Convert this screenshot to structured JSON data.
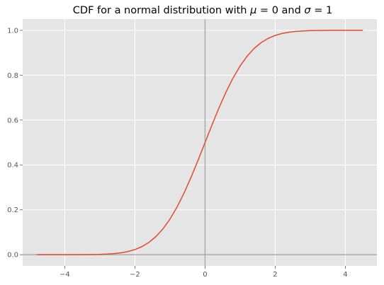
{
  "chart_data": {
    "type": "line",
    "title": "CDF for a normal distribution with μ = 0 and σ = 1",
    "title_parts": {
      "prefix": "CDF for a normal distribution with ",
      "mu_symbol": "μ",
      "eq1": " = 0",
      "and_text": " and ",
      "sigma_symbol": "σ",
      "eq2": " = 1"
    },
    "xlabel": "",
    "ylabel": "",
    "xlim": [
      -5.2,
      4.9
    ],
    "ylim": [
      -0.05,
      1.05
    ],
    "x_ticks": [
      -4,
      -2,
      0,
      2,
      4
    ],
    "x_tick_labels": [
      "−4",
      "−2",
      "0",
      "2",
      "4"
    ],
    "y_ticks": [
      0.0,
      0.2,
      0.4,
      0.6,
      0.8,
      1.0
    ],
    "y_tick_labels": [
      "0.0",
      "0.2",
      "0.4",
      "0.6",
      "0.8",
      "1.0"
    ],
    "grid": true,
    "reference_lines": {
      "x": 0,
      "y": 0
    },
    "series": [
      {
        "color": "#e24a33",
        "x": [
          -4.8,
          -4.6,
          -4.4,
          -4.2,
          -4.0,
          -3.8,
          -3.6,
          -3.4,
          -3.2,
          -3.0,
          -2.8,
          -2.6,
          -2.4,
          -2.2,
          -2.0,
          -1.8,
          -1.6,
          -1.4,
          -1.2,
          -1.0,
          -0.8,
          -0.6,
          -0.4,
          -0.2,
          0.0,
          0.2,
          0.4,
          0.6,
          0.8,
          1.0,
          1.2,
          1.4,
          1.6,
          1.8,
          2.0,
          2.2,
          2.4,
          2.6,
          2.8,
          3.0,
          3.2,
          3.4,
          3.6,
          3.8,
          4.0,
          4.2,
          4.5
        ],
        "y": [
          0.0,
          0.0,
          0.0,
          0.0,
          0.0,
          0.0001,
          0.0002,
          0.0003,
          0.0007,
          0.0013,
          0.0026,
          0.0047,
          0.0082,
          0.0139,
          0.0228,
          0.0359,
          0.0548,
          0.0808,
          0.1151,
          0.1587,
          0.2119,
          0.2743,
          0.3446,
          0.4207,
          0.5,
          0.5793,
          0.6554,
          0.7257,
          0.7881,
          0.8413,
          0.8849,
          0.9192,
          0.9452,
          0.9641,
          0.9772,
          0.9861,
          0.9918,
          0.9953,
          0.9974,
          0.9987,
          0.9993,
          0.9997,
          0.9998,
          0.9999,
          1.0,
          1.0,
          1.0
        ]
      }
    ]
  },
  "colors": {
    "plot_background": "#e5e5e5",
    "grid": "#ffffff",
    "reference_line": "#aaaaaa",
    "line": "#e24a33"
  }
}
